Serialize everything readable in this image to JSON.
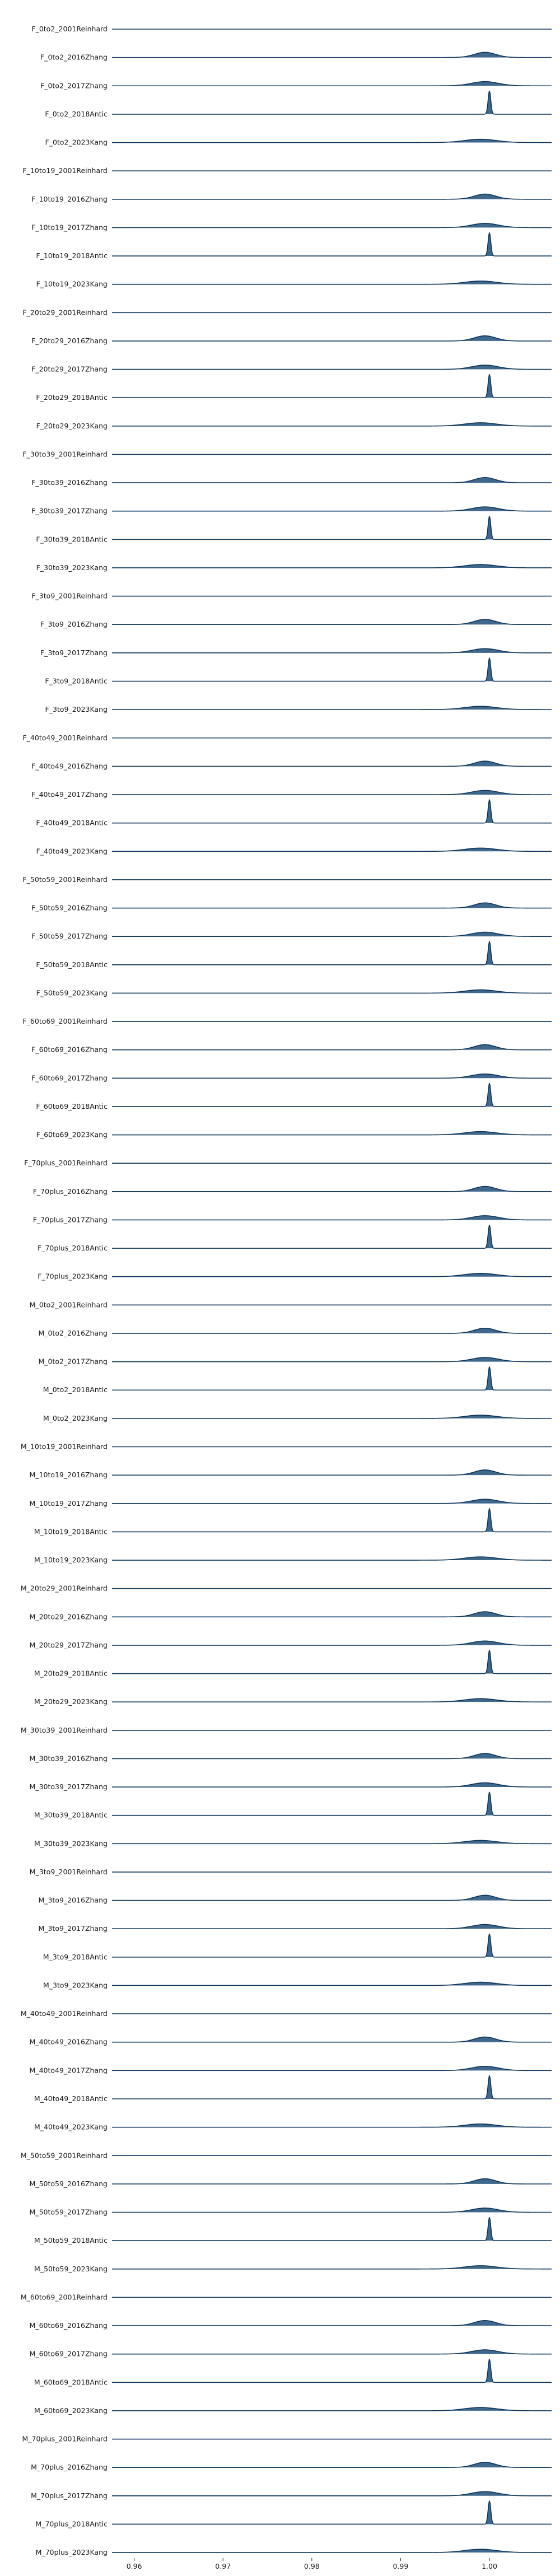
{
  "chart_data": {
    "type": "ridgeline",
    "x_ticks": [
      0.96,
      0.97,
      0.98,
      0.99,
      1.0
    ],
    "x_tick_labels": [
      "0.96",
      "0.97",
      "0.98",
      "0.99",
      "1.00"
    ],
    "xlim": [
      0.9575,
      1.007
    ],
    "grid": false,
    "colors": {
      "fill": "#1f4e79",
      "line": "#0d3559",
      "text": "#1a1a1a"
    },
    "series_shape_note": "",
    "series": [
      {
        "name": "F_0to2_2001Reinhard"
      },
      {
        "name": "F_0to2_2016Zhang",
        "peak_x": 0.9995,
        "peak_height": 0.22,
        "spread": 0.0012
      },
      {
        "name": "F_0to2_2017Zhang",
        "peak_x": 0.9995,
        "peak_height": 0.18,
        "spread": 0.0015
      },
      {
        "name": "F_0to2_2018Antic",
        "peak_x": 1.0,
        "peak_height": 1.0,
        "spread": 0.00015
      },
      {
        "name": "F_0to2_2023Kang",
        "peak_x": 0.999,
        "peak_height": 0.14,
        "spread": 0.0018
      },
      {
        "name": "F_10to19_2001Reinhard"
      },
      {
        "name": "F_10to19_2016Zhang",
        "peak_x": 0.9995,
        "peak_height": 0.22,
        "spread": 0.0012
      },
      {
        "name": "F_10to19_2017Zhang",
        "peak_x": 0.9995,
        "peak_height": 0.18,
        "spread": 0.0015
      },
      {
        "name": "F_10to19_2018Antic",
        "peak_x": 1.0,
        "peak_height": 1.0,
        "spread": 0.00015
      },
      {
        "name": "F_10to19_2023Kang",
        "peak_x": 0.999,
        "peak_height": 0.14,
        "spread": 0.0018
      },
      {
        "name": "F_20to29_2001Reinhard"
      },
      {
        "name": "F_20to29_2016Zhang",
        "peak_x": 0.9995,
        "peak_height": 0.22,
        "spread": 0.0012
      },
      {
        "name": "F_20to29_2017Zhang",
        "peak_x": 0.9995,
        "peak_height": 0.18,
        "spread": 0.0015
      },
      {
        "name": "F_20to29_2018Antic",
        "peak_x": 1.0,
        "peak_height": 1.0,
        "spread": 0.00015
      },
      {
        "name": "F_20to29_2023Kang",
        "peak_x": 0.999,
        "peak_height": 0.14,
        "spread": 0.0018
      },
      {
        "name": "F_30to39_2001Reinhard"
      },
      {
        "name": "F_30to39_2016Zhang",
        "peak_x": 0.9995,
        "peak_height": 0.22,
        "spread": 0.0012
      },
      {
        "name": "F_30to39_2017Zhang",
        "peak_x": 0.9995,
        "peak_height": 0.18,
        "spread": 0.0015
      },
      {
        "name": "F_30to39_2018Antic",
        "peak_x": 1.0,
        "peak_height": 1.0,
        "spread": 0.00015
      },
      {
        "name": "F_30to39_2023Kang",
        "peak_x": 0.999,
        "peak_height": 0.14,
        "spread": 0.0018
      },
      {
        "name": "F_3to9_2001Reinhard"
      },
      {
        "name": "F_3to9_2016Zhang",
        "peak_x": 0.9995,
        "peak_height": 0.22,
        "spread": 0.0012
      },
      {
        "name": "F_3to9_2017Zhang",
        "peak_x": 0.9995,
        "peak_height": 0.18,
        "spread": 0.0015
      },
      {
        "name": "F_3to9_2018Antic",
        "peak_x": 1.0,
        "peak_height": 1.0,
        "spread": 0.00015
      },
      {
        "name": "F_3to9_2023Kang",
        "peak_x": 0.999,
        "peak_height": 0.14,
        "spread": 0.0018
      },
      {
        "name": "F_40to49_2001Reinhard"
      },
      {
        "name": "F_40to49_2016Zhang",
        "peak_x": 0.9995,
        "peak_height": 0.22,
        "spread": 0.0012
      },
      {
        "name": "F_40to49_2017Zhang",
        "peak_x": 0.9995,
        "peak_height": 0.18,
        "spread": 0.0015
      },
      {
        "name": "F_40to49_2018Antic",
        "peak_x": 1.0,
        "peak_height": 1.0,
        "spread": 0.00015
      },
      {
        "name": "F_40to49_2023Kang",
        "peak_x": 0.999,
        "peak_height": 0.14,
        "spread": 0.0018
      },
      {
        "name": "F_50to59_2001Reinhard"
      },
      {
        "name": "F_50to59_2016Zhang",
        "peak_x": 0.9995,
        "peak_height": 0.22,
        "spread": 0.0012
      },
      {
        "name": "F_50to59_2017Zhang",
        "peak_x": 0.9995,
        "peak_height": 0.18,
        "spread": 0.0015
      },
      {
        "name": "F_50to59_2018Antic",
        "peak_x": 1.0,
        "peak_height": 1.0,
        "spread": 0.00015
      },
      {
        "name": "F_50to59_2023Kang",
        "peak_x": 0.999,
        "peak_height": 0.14,
        "spread": 0.0018
      },
      {
        "name": "F_60to69_2001Reinhard"
      },
      {
        "name": "F_60to69_2016Zhang",
        "peak_x": 0.9995,
        "peak_height": 0.22,
        "spread": 0.0012
      },
      {
        "name": "F_60to69_2017Zhang",
        "peak_x": 0.9995,
        "peak_height": 0.18,
        "spread": 0.0015
      },
      {
        "name": "F_60to69_2018Antic",
        "peak_x": 1.0,
        "peak_height": 1.0,
        "spread": 0.00015
      },
      {
        "name": "F_60to69_2023Kang",
        "peak_x": 0.999,
        "peak_height": 0.14,
        "spread": 0.0018
      },
      {
        "name": "F_70plus_2001Reinhard"
      },
      {
        "name": "F_70plus_2016Zhang",
        "peak_x": 0.9995,
        "peak_height": 0.22,
        "spread": 0.0012
      },
      {
        "name": "F_70plus_2017Zhang",
        "peak_x": 0.9995,
        "peak_height": 0.18,
        "spread": 0.0015
      },
      {
        "name": "F_70plus_2018Antic",
        "peak_x": 1.0,
        "peak_height": 1.0,
        "spread": 0.00015
      },
      {
        "name": "F_70plus_2023Kang",
        "peak_x": 0.999,
        "peak_height": 0.14,
        "spread": 0.0018
      },
      {
        "name": "M_0to2_2001Reinhard"
      },
      {
        "name": "M_0to2_2016Zhang",
        "peak_x": 0.9995,
        "peak_height": 0.22,
        "spread": 0.0012
      },
      {
        "name": "M_0to2_2017Zhang",
        "peak_x": 0.9995,
        "peak_height": 0.18,
        "spread": 0.0015
      },
      {
        "name": "M_0to2_2018Antic",
        "peak_x": 1.0,
        "peak_height": 1.0,
        "spread": 0.00015
      },
      {
        "name": "M_0to2_2023Kang",
        "peak_x": 0.999,
        "peak_height": 0.14,
        "spread": 0.0018
      },
      {
        "name": "M_10to19_2001Reinhard"
      },
      {
        "name": "M_10to19_2016Zhang",
        "peak_x": 0.9995,
        "peak_height": 0.22,
        "spread": 0.0012
      },
      {
        "name": "M_10to19_2017Zhang",
        "peak_x": 0.9995,
        "peak_height": 0.18,
        "spread": 0.0015
      },
      {
        "name": "M_10to19_2018Antic",
        "peak_x": 1.0,
        "peak_height": 1.0,
        "spread": 0.00015
      },
      {
        "name": "M_10to19_2023Kang",
        "peak_x": 0.999,
        "peak_height": 0.14,
        "spread": 0.0018
      },
      {
        "name": "M_20to29_2001Reinhard"
      },
      {
        "name": "M_20to29_2016Zhang",
        "peak_x": 0.9995,
        "peak_height": 0.22,
        "spread": 0.0012
      },
      {
        "name": "M_20to29_2017Zhang",
        "peak_x": 0.9995,
        "peak_height": 0.18,
        "spread": 0.0015
      },
      {
        "name": "M_20to29_2018Antic",
        "peak_x": 1.0,
        "peak_height": 1.0,
        "spread": 0.00015
      },
      {
        "name": "M_20to29_2023Kang",
        "peak_x": 0.999,
        "peak_height": 0.14,
        "spread": 0.0018
      },
      {
        "name": "M_30to39_2001Reinhard"
      },
      {
        "name": "M_30to39_2016Zhang",
        "peak_x": 0.9995,
        "peak_height": 0.22,
        "spread": 0.0012
      },
      {
        "name": "M_30to39_2017Zhang",
        "peak_x": 0.9995,
        "peak_height": 0.18,
        "spread": 0.0015
      },
      {
        "name": "M_30to39_2018Antic",
        "peak_x": 1.0,
        "peak_height": 1.0,
        "spread": 0.00015
      },
      {
        "name": "M_30to39_2023Kang",
        "peak_x": 0.999,
        "peak_height": 0.14,
        "spread": 0.0018
      },
      {
        "name": "M_3to9_2001Reinhard"
      },
      {
        "name": "M_3to9_2016Zhang",
        "peak_x": 0.9995,
        "peak_height": 0.22,
        "spread": 0.0012
      },
      {
        "name": "M_3to9_2017Zhang",
        "peak_x": 0.9995,
        "peak_height": 0.18,
        "spread": 0.0015
      },
      {
        "name": "M_3to9_2018Antic",
        "peak_x": 1.0,
        "peak_height": 1.0,
        "spread": 0.00015
      },
      {
        "name": "M_3to9_2023Kang",
        "peak_x": 0.999,
        "peak_height": 0.14,
        "spread": 0.0018
      },
      {
        "name": "M_40to49_2001Reinhard"
      },
      {
        "name": "M_40to49_2016Zhang",
        "peak_x": 0.9995,
        "peak_height": 0.22,
        "spread": 0.0012
      },
      {
        "name": "M_40to49_2017Zhang",
        "peak_x": 0.9995,
        "peak_height": 0.18,
        "spread": 0.0015
      },
      {
        "name": "M_40to49_2018Antic",
        "peak_x": 1.0,
        "peak_height": 1.0,
        "spread": 0.00015
      },
      {
        "name": "M_40to49_2023Kang",
        "peak_x": 0.999,
        "peak_height": 0.14,
        "spread": 0.0018
      },
      {
        "name": "M_50to59_2001Reinhard"
      },
      {
        "name": "M_50to59_2016Zhang",
        "peak_x": 0.9995,
        "peak_height": 0.22,
        "spread": 0.0012
      },
      {
        "name": "M_50to59_2017Zhang",
        "peak_x": 0.9995,
        "peak_height": 0.18,
        "spread": 0.0015
      },
      {
        "name": "M_50to59_2018Antic",
        "peak_x": 1.0,
        "peak_height": 1.0,
        "spread": 0.00015
      },
      {
        "name": "M_50to59_2023Kang",
        "peak_x": 0.999,
        "peak_height": 0.14,
        "spread": 0.0018
      },
      {
        "name": "M_60to69_2001Reinhard"
      },
      {
        "name": "M_60to69_2016Zhang",
        "peak_x": 0.9995,
        "peak_height": 0.22,
        "spread": 0.0012
      },
      {
        "name": "M_60to69_2017Zhang",
        "peak_x": 0.9995,
        "peak_height": 0.18,
        "spread": 0.0015
      },
      {
        "name": "M_60to69_2018Antic",
        "peak_x": 1.0,
        "peak_height": 1.0,
        "spread": 0.00015
      },
      {
        "name": "M_60to69_2023Kang",
        "peak_x": 0.999,
        "peak_height": 0.14,
        "spread": 0.0018
      },
      {
        "name": "M_70plus_2001Reinhard"
      },
      {
        "name": "M_70plus_2016Zhang",
        "peak_x": 0.9995,
        "peak_height": 0.22,
        "spread": 0.0012
      },
      {
        "name": "M_70plus_2017Zhang",
        "peak_x": 0.9995,
        "peak_height": 0.18,
        "spread": 0.0015
      },
      {
        "name": "M_70plus_2018Antic",
        "peak_x": 1.0,
        "peak_height": 1.0,
        "spread": 0.00015
      },
      {
        "name": "M_70plus_2023Kang",
        "peak_x": 0.999,
        "peak_height": 0.14,
        "spread": 0.0018
      }
    ]
  }
}
